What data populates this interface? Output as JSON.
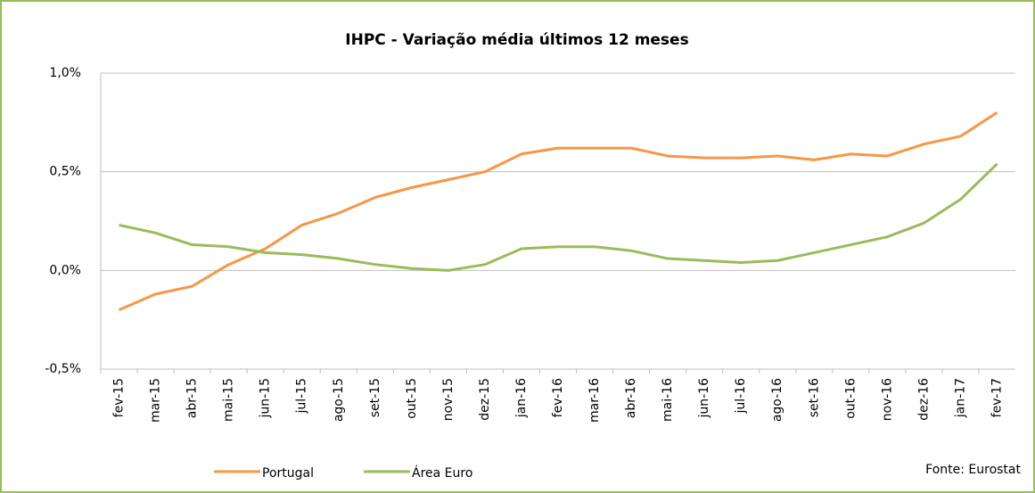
{
  "chart_data": {
    "type": "line",
    "title": "IHPC - Variação média últimos 12 meses",
    "categories": [
      "fev-15",
      "mar-15",
      "abr-15",
      "mai-15",
      "jun-15",
      "jul-15",
      "ago-15",
      "set-15",
      "out-15",
      "nov-15",
      "dez-15",
      "jan-16",
      "fev-16",
      "mar-16",
      "abr-16",
      "mai-16",
      "jun-16",
      "jul-16",
      "ago-16",
      "set-16",
      "out-16",
      "nov-16",
      "dez-16",
      "jan-17",
      "fev-17"
    ],
    "series": [
      {
        "name": "Portugal",
        "color": "#f79646",
        "values": [
          -0.2,
          -0.12,
          -0.08,
          0.03,
          0.11,
          0.23,
          0.29,
          0.37,
          0.42,
          0.46,
          0.5,
          0.59,
          0.62,
          0.62,
          0.62,
          0.58,
          0.57,
          0.57,
          0.58,
          0.56,
          0.59,
          0.58,
          0.64,
          0.68,
          0.8
        ]
      },
      {
        "name": "Área Euro",
        "color": "#9bbb59",
        "values": [
          0.23,
          0.19,
          0.13,
          0.12,
          0.09,
          0.08,
          0.06,
          0.03,
          0.01,
          0.0,
          0.03,
          0.11,
          0.12,
          0.12,
          0.1,
          0.06,
          0.05,
          0.04,
          0.05,
          0.09,
          0.13,
          0.17,
          0.24,
          0.36,
          0.54
        ]
      }
    ],
    "ylim": [
      -0.5,
      1.0
    ],
    "yticks": [
      {
        "value": -0.5,
        "label": "-0,5%"
      },
      {
        "value": 0,
        "label": "0,0%"
      },
      {
        "value": 0.5,
        "label": "0,5%"
      },
      {
        "value": 1.0,
        "label": "1,0%"
      }
    ],
    "grid": true,
    "legend": "bottom",
    "annotations": [
      "Fonte: Eurostat"
    ]
  }
}
